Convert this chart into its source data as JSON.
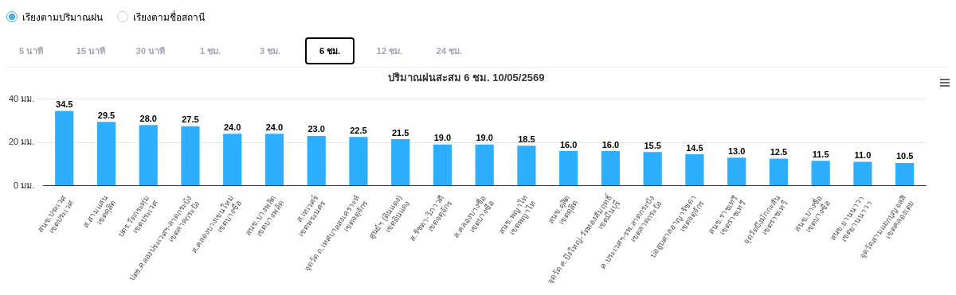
{
  "chart_data": {
    "type": "bar",
    "title": "ปริมาณฝนสะสม 6 ชม. 10/05/2569",
    "annotations": [
      "เรียงตามปริมาณฝน",
      "เรียงตามชื่อสถานี",
      "5 นาที",
      "15 นาที",
      "30 นาที",
      "1 ชม.",
      "3 ชม.",
      "6 ชม.",
      "12 ชม.",
      "24 ชม."
    ],
    "categories": [
      "สนข.ประเวศ\nเขตประเวศ",
      "ส.สามแสน\nเขตดุสิต",
      "ปตร.วัดกระทุ่ม\nเขตประเวศ",
      "ปตร.คลองประเวศฯ-ลาดกระบัง\nเขตลาดกระบัง",
      "ส.คลองบางเขนใหม่\nเขตบางซื่อ",
      "สนข.บางพลัด\nเขตบางพลัด",
      "ส.เทเวศร์\nเขตพระนคร",
      "จุดวัด ถ.เทศบาลสงเคราะห์\nเขตจตุจักร",
      "ศูนย์ฯ (ดินแดง)\nเขตดินแดง",
      "ส.รัชดา-วิภาวดี\nเขตจตุจักร",
      "ส.คลองบางซื่อ\nเขตบางซื่อ",
      "สนข.พญาไท\nเขตพญาไท",
      "สนข.ดุสิต\nเขตดุสิต",
      "จุดวัด ค.บึงใหญ่-วัดทองสัมฤทธิ์\nเขตมีนบุรี",
      "ค.ประเวศฯ-รพ.ลาดกระบัง\nเขตลาดกระบัง",
      "บ่อสูบศาลอาญารัชดา\nเขตจตุจักร",
      "สนข.ราชเทวี\nเขตราชเทวี",
      "จุดวัดบึงมักกะสัน\nเขตราชเทวี",
      "สนข.บางซื่อ\nเขตบางซื่อ",
      "สนข.ยานนาวา\nเขตยานนาวา",
      "จุดวัดสามแยกบุญจลสิ\nเขตคลองเตย"
    ],
    "values": [
      34.5,
      29.5,
      28.0,
      27.5,
      24.0,
      24.0,
      23.0,
      22.5,
      21.5,
      19.0,
      19.0,
      18.5,
      16.0,
      16.0,
      15.5,
      14.5,
      13.0,
      12.5,
      11.5,
      11.0,
      10.5
    ],
    "color": "#2eaeff",
    "ylim": [
      0,
      40
    ],
    "yticks": [
      {
        "value": 0,
        "label": "0 มม."
      },
      {
        "value": 20,
        "label": "20 มม."
      },
      {
        "value": 40,
        "label": "40 มม."
      }
    ],
    "value_labels": [
      "34.5",
      "29.5",
      "28.0",
      "27.5",
      "24.0",
      "24.0",
      "23.0",
      "22.5",
      "21.5",
      "19.0",
      "19.0",
      "18.5",
      "16.0",
      "16.0",
      "15.5",
      "14.5",
      "13.0",
      "12.5",
      "11.5",
      "11.0",
      "10.5"
    ],
    "grid": "y",
    "legend": false
  }
}
